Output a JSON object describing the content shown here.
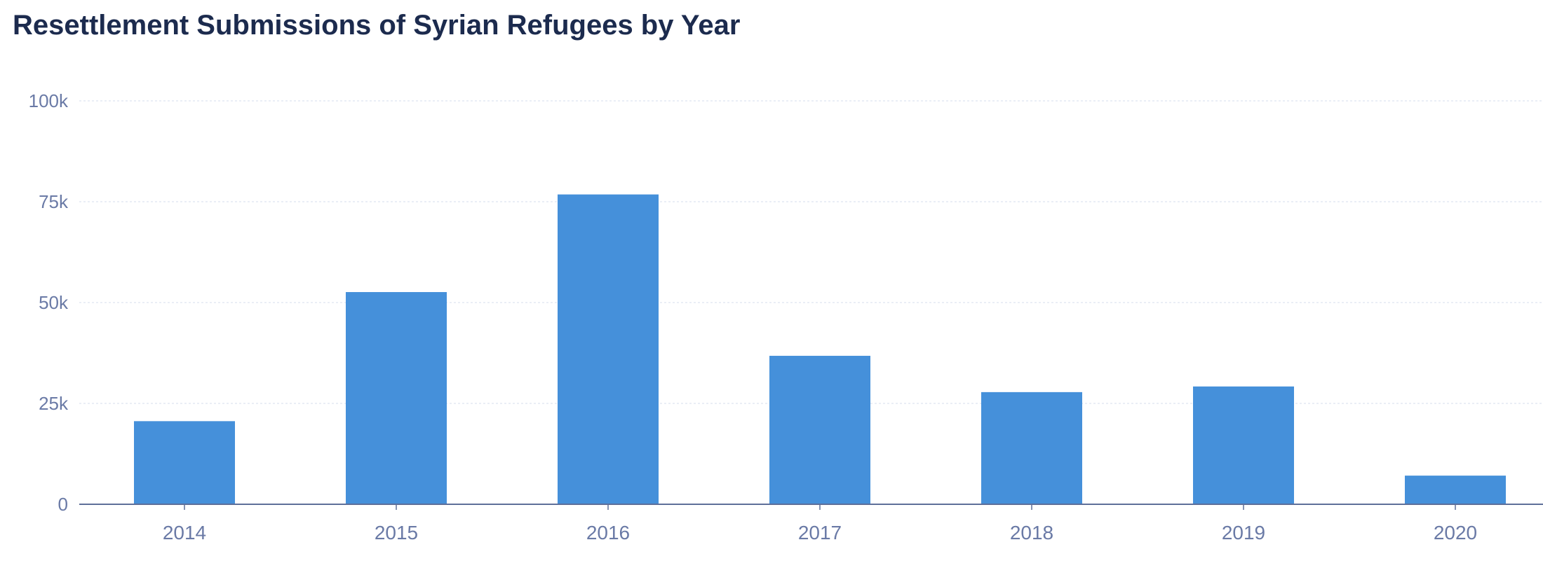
{
  "chart_data": {
    "type": "bar",
    "title": "Resettlement Submissions of Syrian Refugees by Year",
    "xlabel": "",
    "ylabel": "",
    "categories": [
      "2014",
      "2015",
      "2016",
      "2017",
      "2018",
      "2019",
      "2020"
    ],
    "values": [
      20600,
      52600,
      76800,
      36800,
      27800,
      29200,
      7100
    ],
    "ylim": [
      0,
      100000
    ],
    "yticks": [
      0,
      25000,
      50000,
      75000,
      100000
    ],
    "ytick_labels": [
      "0",
      "25k",
      "50k",
      "75k",
      "100k"
    ],
    "grid": true,
    "legend": "none",
    "colors": {
      "bar": "#4590da",
      "title": "#1c2b4e",
      "tick_label": "#6a7aa6",
      "grid": "#e4e9f4",
      "axis": "#5e6f99"
    }
  }
}
